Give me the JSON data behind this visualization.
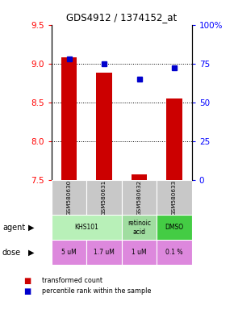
{
  "title": "GDS4912 / 1374152_at",
  "samples": [
    "GSM580630",
    "GSM580631",
    "GSM580632",
    "GSM580633"
  ],
  "bar_values": [
    9.08,
    8.88,
    7.57,
    8.55
  ],
  "bar_base": 7.5,
  "percentile_values": [
    78,
    75,
    65,
    72
  ],
  "ylim_left": [
    7.5,
    9.5
  ],
  "ylim_right": [
    0,
    100
  ],
  "yticks_left": [
    7.5,
    8.0,
    8.5,
    9.0,
    9.5
  ],
  "yticks_right": [
    0,
    25,
    50,
    75,
    100
  ],
  "ytick_labels_right": [
    "0",
    "25",
    "50",
    "75",
    "100%"
  ],
  "bar_color": "#cc0000",
  "dot_color": "#0000cc",
  "dose_labels": [
    "5 uM",
    "1.7 uM",
    "1 uM",
    "0.1 %"
  ],
  "dose_color": "#dd88dd",
  "sample_bg_color": "#c8c8c8",
  "agent_spans": [
    [
      0,
      2,
      "KHS101",
      "#b8f0b8"
    ],
    [
      2,
      3,
      "retinoic\nacid",
      "#a0dda0"
    ],
    [
      3,
      4,
      "DMSO",
      "#44cc44"
    ]
  ],
  "legend_items": [
    "transformed count",
    "percentile rank within the sample"
  ]
}
